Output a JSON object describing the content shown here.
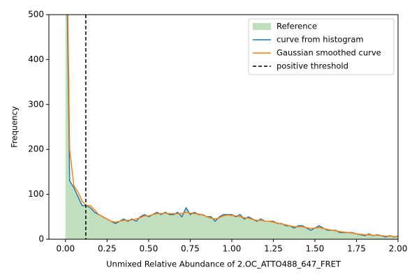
{
  "chart_data": {
    "type": "line",
    "xlabel": "Unmixed Relative Abundance of 2.OC_ATTO488_647_FRET",
    "ylabel": "Frequency",
    "x": [
      0,
      0.025,
      0.05,
      0.075,
      0.1,
      0.125,
      0.15,
      0.175,
      0.2,
      0.225,
      0.25,
      0.275,
      0.3,
      0.325,
      0.35,
      0.375,
      0.4,
      0.425,
      0.45,
      0.475,
      0.5,
      0.525,
      0.55,
      0.575,
      0.6,
      0.625,
      0.65,
      0.675,
      0.7,
      0.725,
      0.75,
      0.775,
      0.8,
      0.825,
      0.85,
      0.875,
      0.9,
      0.925,
      0.95,
      0.975,
      1.0,
      1.025,
      1.05,
      1.075,
      1.1,
      1.125,
      1.15,
      1.175,
      1.2,
      1.225,
      1.25,
      1.275,
      1.3,
      1.325,
      1.35,
      1.375,
      1.4,
      1.425,
      1.45,
      1.475,
      1.5,
      1.525,
      1.55,
      1.575,
      1.6,
      1.625,
      1.65,
      1.675,
      1.7,
      1.725,
      1.75,
      1.775,
      1.8,
      1.825,
      1.85,
      1.875,
      1.9,
      1.925,
      1.95,
      1.975,
      2.0
    ],
    "area": {
      "name": "Reference",
      "color": "#bfdfbf",
      "values": [
        800,
        130,
        115,
        95,
        75,
        75,
        70,
        60,
        55,
        50,
        45,
        40,
        35,
        40,
        45,
        40,
        45,
        40,
        50,
        55,
        50,
        55,
        60,
        55,
        60,
        55,
        55,
        60,
        50,
        70,
        55,
        60,
        55,
        55,
        50,
        50,
        40,
        50,
        55,
        55,
        55,
        50,
        55,
        45,
        50,
        45,
        40,
        45,
        40,
        40,
        40,
        35,
        35,
        30,
        30,
        25,
        30,
        30,
        25,
        20,
        25,
        30,
        25,
        20,
        20,
        20,
        15,
        15,
        15,
        15,
        12,
        10,
        8,
        12,
        8,
        10,
        8,
        5,
        8,
        5,
        7
      ]
    },
    "series": [
      {
        "name": "curve from histogram",
        "color": "#1f77b4",
        "values": [
          800,
          130,
          115,
          95,
          75,
          75,
          70,
          60,
          55,
          50,
          45,
          40,
          35,
          40,
          45,
          40,
          45,
          40,
          50,
          55,
          50,
          55,
          60,
          55,
          60,
          55,
          55,
          60,
          50,
          70,
          55,
          60,
          55,
          55,
          50,
          50,
          40,
          50,
          55,
          55,
          55,
          50,
          55,
          45,
          50,
          45,
          40,
          45,
          40,
          40,
          40,
          35,
          35,
          30,
          30,
          25,
          30,
          30,
          25,
          20,
          25,
          30,
          25,
          20,
          20,
          20,
          15,
          15,
          15,
          15,
          12,
          10,
          8,
          12,
          8,
          10,
          8,
          5,
          8,
          5,
          7
        ]
      },
      {
        "name": "Gaussian smoothed curve",
        "color": "#ff7f0e",
        "values": [
          900,
          200,
          120,
          105,
          85,
          75,
          75,
          65,
          55,
          50,
          45,
          40,
          38,
          40,
          42,
          42,
          43,
          45,
          48,
          52,
          52,
          55,
          57,
          57,
          58,
          57,
          57,
          57,
          57,
          60,
          58,
          57,
          56,
          54,
          50,
          47,
          45,
          48,
          52,
          54,
          53,
          52,
          50,
          48,
          47,
          44,
          42,
          42,
          40,
          40,
          38,
          36,
          34,
          32,
          30,
          28,
          28,
          28,
          26,
          24,
          25,
          26,
          24,
          22,
          20,
          19,
          17,
          16,
          15,
          14,
          12,
          11,
          10,
          10,
          9,
          9,
          8,
          7,
          7,
          6,
          6
        ]
      }
    ],
    "threshold": {
      "name": "positive threshold",
      "x": 0.122,
      "color": "#000000"
    },
    "xlim": [
      -0.1,
      2.0
    ],
    "ylim": [
      0,
      500
    ],
    "xticks": [
      {
        "value": 0,
        "label": "0.00"
      },
      {
        "value": 0.25,
        "label": "0.25"
      },
      {
        "value": 0.5,
        "label": "0.50"
      },
      {
        "value": 0.75,
        "label": "0.75"
      },
      {
        "value": 1.0,
        "label": "1.00"
      },
      {
        "value": 1.25,
        "label": "1.25"
      },
      {
        "value": 1.5,
        "label": "1.50"
      },
      {
        "value": 1.75,
        "label": "1.75"
      },
      {
        "value": 2.0,
        "label": "2.00"
      }
    ],
    "yticks": [
      0,
      100,
      200,
      300,
      400,
      500
    ],
    "legend": "upper right"
  }
}
